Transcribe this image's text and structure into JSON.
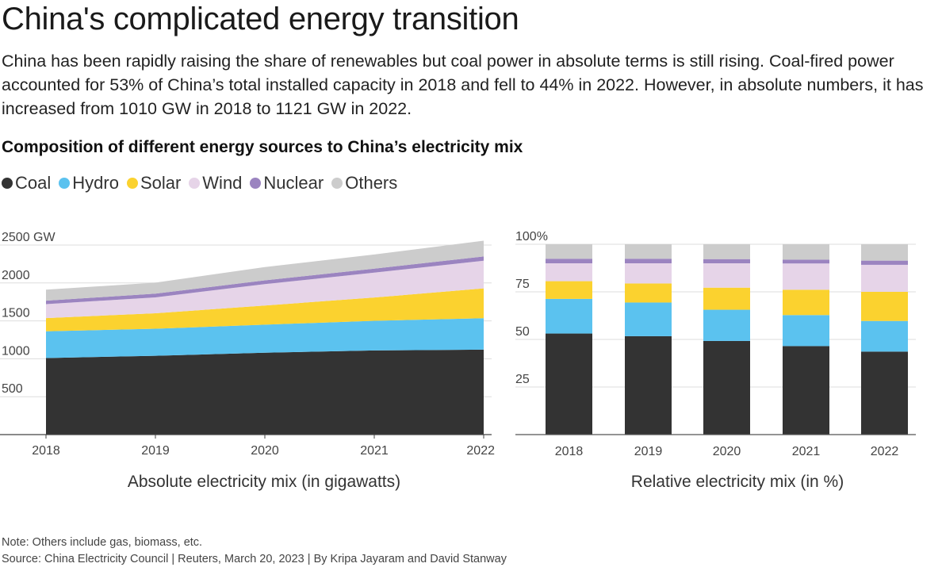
{
  "title": "China's complicated energy transition",
  "subtitle": "China has been rapidly raising the share of renewables but coal power in absolute terms is still rising. Coal-fired power accounted for 53% of China’s total installed capacity in 2018 and fell to 44% in 2022. However, in absolute numbers, it has increased from 1010 GW in 2018 to 1121 GW in 2022.",
  "heading": "Composition of different energy sources to China’s electricity mix",
  "legend": [
    {
      "label": "Coal",
      "color": "#333333"
    },
    {
      "label": "Hydro",
      "color": "#5bc2ef"
    },
    {
      "label": "Solar",
      "color": "#fbd22f"
    },
    {
      "label": "Wind",
      "color": "#e6d4e8"
    },
    {
      "label": "Nuclear",
      "color": "#9b84c0"
    },
    {
      "label": "Others",
      "color": "#cccccc"
    }
  ],
  "chart_data": [
    {
      "type": "area",
      "stacked": true,
      "title": "Absolute electricity mix (in gigawatts)",
      "x": [
        "2018",
        "2019",
        "2020",
        "2021",
        "2022"
      ],
      "ylim": [
        0,
        2500
      ],
      "yticks": [
        {
          "v": 500,
          "label": "500"
        },
        {
          "v": 1000,
          "label": "1000"
        },
        {
          "v": 1500,
          "label": "1500"
        },
        {
          "v": 2000,
          "label": "2000"
        },
        {
          "v": 2500,
          "label": "2500 GW"
        }
      ],
      "grid": true,
      "series": [
        {
          "name": "Coal",
          "values": [
            1010,
            1040,
            1080,
            1110,
            1121
          ]
        },
        {
          "name": "Hydro",
          "values": [
            352,
            356,
            370,
            391,
            414
          ]
        },
        {
          "name": "Solar",
          "values": [
            175,
            204,
            253,
            307,
            393
          ]
        },
        {
          "name": "Wind",
          "values": [
            184,
            210,
            282,
            328,
            365
          ]
        },
        {
          "name": "Nuclear",
          "values": [
            45,
            49,
            50,
            53,
            56
          ]
        },
        {
          "name": "Others",
          "values": [
            145,
            146,
            175,
            187,
            208
          ]
        }
      ]
    },
    {
      "type": "bar",
      "stacked": true,
      "title": "Relative electricity mix (in %)",
      "categories": [
        "2018",
        "2019",
        "2020",
        "2021",
        "2022"
      ],
      "ylim": [
        0,
        100
      ],
      "yticks": [
        {
          "v": 25,
          "label": "25"
        },
        {
          "v": 50,
          "label": "50"
        },
        {
          "v": 75,
          "label": "75"
        },
        {
          "v": 100,
          "label": "100%"
        }
      ],
      "grid": true,
      "series": [
        {
          "name": "Coal",
          "values": [
            53.1,
            51.7,
            49.2,
            46.5,
            43.6
          ]
        },
        {
          "name": "Hydro",
          "values": [
            18.2,
            17.7,
            16.4,
            16.3,
            16.1
          ]
        },
        {
          "name": "Solar",
          "values": [
            9.3,
            10.0,
            11.6,
            13.3,
            15.3
          ]
        },
        {
          "name": "Wind",
          "values": [
            9.4,
            10.6,
            12.8,
            13.8,
            14.2
          ]
        },
        {
          "name": "Nuclear",
          "values": [
            2.4,
            2.4,
            2.2,
            2.0,
            2.2
          ]
        },
        {
          "name": "Others",
          "values": [
            7.6,
            7.6,
            7.8,
            8.1,
            8.6
          ]
        }
      ]
    }
  ],
  "notes": {
    "note": "Note: Others include gas, biomass, etc.",
    "source": "Source: China Electricity Council | Reuters, March 20, 2023 | By Kripa Jayaram and David Stanway"
  }
}
